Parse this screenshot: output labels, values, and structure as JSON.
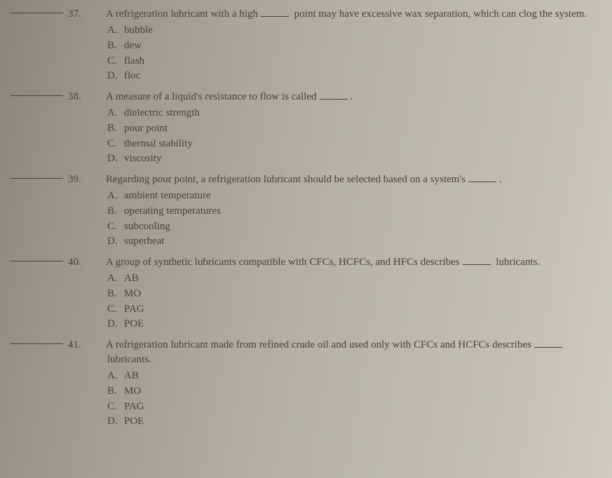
{
  "questions": [
    {
      "num": "37.",
      "text_before": "A refrigeration lubricant with a high",
      "text_after": " point may have excessive wax separation, which can clog the system.",
      "options": [
        {
          "letter": "A.",
          "text": "bubble"
        },
        {
          "letter": "B.",
          "text": "dew"
        },
        {
          "letter": "C.",
          "text": "flash"
        },
        {
          "letter": "D.",
          "text": "floc"
        }
      ]
    },
    {
      "num": "38.",
      "text_before": "A measure of a liquid's resistance to flow is called",
      "text_after": ".",
      "options": [
        {
          "letter": "A.",
          "text": "dielectric strength"
        },
        {
          "letter": "B.",
          "text": "pour point"
        },
        {
          "letter": "C.",
          "text": "thermal stability"
        },
        {
          "letter": "D.",
          "text": "viscosity"
        }
      ]
    },
    {
      "num": "39.",
      "text_before": "Regarding pour point, a refrigeration lubricant should be selected based on a system's",
      "text_after": ".",
      "options": [
        {
          "letter": "A.",
          "text": "ambient temperature"
        },
        {
          "letter": "B.",
          "text": "operating temperatures"
        },
        {
          "letter": "C.",
          "text": "subcooling"
        },
        {
          "letter": "D.",
          "text": "superheat"
        }
      ]
    },
    {
      "num": "40.",
      "text_before": "A group of synthetic lubricants compatible with CFCs, HCFCs, and HFCs describes",
      "text_after": " lubricants.",
      "options": [
        {
          "letter": "A.",
          "text": "AB"
        },
        {
          "letter": "B.",
          "text": "MO"
        },
        {
          "letter": "C.",
          "text": "PAG"
        },
        {
          "letter": "D.",
          "text": "POE"
        }
      ]
    },
    {
      "num": "41.",
      "text_before": "A refrigeration lubricant made from refined crude oil and used only with CFCs and HCFCs describes",
      "text_after": " lubricants.",
      "options": [
        {
          "letter": "A.",
          "text": "AB"
        },
        {
          "letter": "B.",
          "text": "MO"
        },
        {
          "letter": "C.",
          "text": "PAG"
        },
        {
          "letter": "D.",
          "text": "POE"
        }
      ]
    }
  ]
}
